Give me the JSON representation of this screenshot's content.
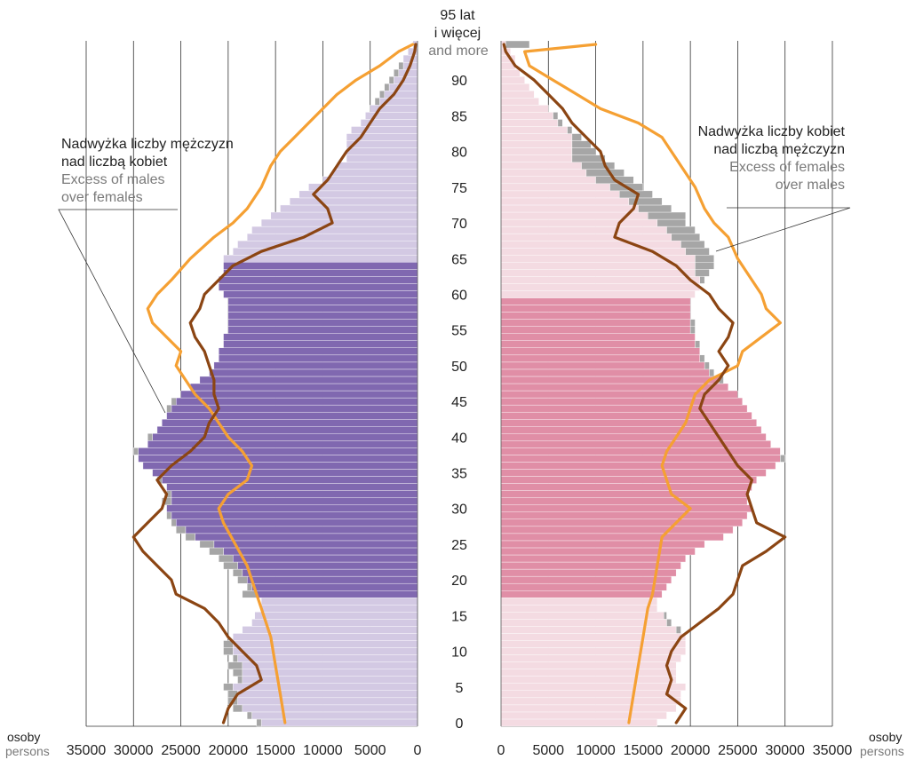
{
  "chart_data": {
    "type": "bar",
    "subtype": "population-pyramid",
    "colors": {
      "male_working_age": "#8068b0",
      "male_other": "#d3c9e3",
      "female_working_age": "#e08ea6",
      "female_other": "#f4dbe2",
      "excess_overlay": "#a6a6a6",
      "line_light": "#f5a033",
      "line_dark": "#8b4513"
    },
    "age_axis": {
      "top_label_pl_1": "95 lat",
      "top_label_pl_2": "i więcej",
      "top_label_en": "and more",
      "ticks": [
        "0",
        "5",
        "10",
        "15",
        "20",
        "25",
        "30",
        "35",
        "40",
        "45",
        "50",
        "55",
        "60",
        "65",
        "70",
        "75",
        "80",
        "85",
        "90"
      ]
    },
    "x_axis": {
      "unit_pl": "osoby",
      "unit_en": "persons",
      "max": 35000,
      "left_ticks": [
        "35000",
        "30000",
        "25000",
        "20000",
        "15000",
        "10000",
        "5000",
        "0"
      ],
      "right_ticks": [
        "0",
        "5000",
        "10000",
        "15000",
        "20000",
        "25000",
        "30000",
        "35000"
      ]
    },
    "annotations": {
      "males": {
        "pl_1": "Nadwyżka liczby mężczyzn",
        "pl_2": "nad liczbą kobiet",
        "en_1": "Excess of males",
        "en_2": "over females"
      },
      "females": {
        "pl_1": "Nadwyżka liczby kobiet",
        "pl_2": "nad liczbą mężczyzn",
        "en_1": "Excess of females",
        "en_2": "over males"
      }
    },
    "working_age": {
      "male": [
        18,
        64
      ],
      "female": [
        18,
        59
      ]
    },
    "ages": [
      0,
      1,
      2,
      3,
      4,
      5,
      6,
      7,
      8,
      9,
      10,
      11,
      12,
      13,
      14,
      15,
      16,
      17,
      18,
      19,
      20,
      21,
      22,
      23,
      24,
      25,
      26,
      27,
      28,
      29,
      30,
      31,
      32,
      33,
      34,
      35,
      36,
      37,
      38,
      39,
      40,
      41,
      42,
      43,
      44,
      45,
      46,
      47,
      48,
      49,
      50,
      51,
      52,
      53,
      54,
      55,
      56,
      57,
      58,
      59,
      60,
      61,
      62,
      63,
      64,
      65,
      66,
      67,
      68,
      69,
      70,
      71,
      72,
      73,
      74,
      75,
      76,
      77,
      78,
      79,
      80,
      81,
      82,
      83,
      84,
      85,
      86,
      87,
      88,
      89,
      90,
      91,
      92,
      93,
      94,
      95
    ],
    "males": [
      17000,
      18000,
      19500,
      20000,
      20000,
      20500,
      19000,
      19500,
      20000,
      19500,
      20500,
      20500,
      19500,
      18500,
      17500,
      17200,
      16500,
      16500,
      18500,
      18000,
      19000,
      19500,
      20500,
      21000,
      22000,
      23000,
      24500,
      25500,
      26000,
      26500,
      26500,
      27000,
      26500,
      26500,
      27500,
      28000,
      29000,
      29500,
      30000,
      28500,
      28500,
      27500,
      27000,
      26500,
      26500,
      26000,
      25000,
      24000,
      23000,
      22000,
      21500,
      21000,
      21000,
      20500,
      20500,
      20000,
      20000,
      20000,
      20000,
      20000,
      20500,
      21000,
      21000,
      20500,
      20500,
      20500,
      19500,
      19000,
      18000,
      17500,
      16500,
      15500,
      14500,
      13500,
      12500,
      11500,
      10000,
      9000,
      8500,
      7500,
      7500,
      7500,
      7500,
      7000,
      6000,
      5500,
      5000,
      4500,
      4000,
      3500,
      3000,
      2500,
      2000,
      1500,
      1000,
      500
    ],
    "females": [
      16500,
      17500,
      18500,
      19000,
      19000,
      19500,
      18500,
      18500,
      18500,
      19000,
      19500,
      19500,
      19500,
      19000,
      18000,
      17500,
      16500,
      16500,
      17000,
      17500,
      18000,
      18500,
      19000,
      19500,
      20500,
      21500,
      23500,
      24500,
      25500,
      26000,
      26500,
      26000,
      26000,
      26500,
      27000,
      28000,
      29000,
      30000,
      29500,
      28500,
      28000,
      27500,
      27000,
      26500,
      26000,
      25500,
      25000,
      24000,
      23500,
      22500,
      22000,
      21500,
      21000,
      21000,
      20500,
      20500,
      20500,
      20000,
      20000,
      20000,
      20500,
      21000,
      21500,
      22000,
      22500,
      22500,
      22000,
      21500,
      21000,
      20500,
      19500,
      19500,
      18000,
      17000,
      16000,
      15000,
      14000,
      13000,
      12000,
      11000,
      10000,
      9500,
      8500,
      7500,
      6500,
      6000,
      5000,
      4000,
      3500,
      3000,
      2500,
      2000,
      1500,
      1500,
      1000,
      3000
    ],
    "series_lines": {
      "males_light": [
        [
          0,
          14000
        ],
        [
          4,
          14500
        ],
        [
          8,
          15000
        ],
        [
          12,
          15500
        ],
        [
          16,
          16500
        ],
        [
          18,
          17000
        ],
        [
          22,
          18000
        ],
        [
          28,
          20500
        ],
        [
          30,
          21000
        ],
        [
          32,
          20000
        ],
        [
          34,
          18000
        ],
        [
          36,
          17500
        ],
        [
          38,
          18500
        ],
        [
          40,
          20000
        ],
        [
          42,
          21000
        ],
        [
          44,
          22000
        ],
        [
          46,
          23500
        ],
        [
          48,
          24500
        ],
        [
          50,
          25500
        ],
        [
          52,
          25000
        ],
        [
          54,
          26500
        ],
        [
          56,
          28000
        ],
        [
          58,
          28500
        ],
        [
          60,
          27500
        ],
        [
          62,
          26000
        ],
        [
          65,
          24000
        ],
        [
          68,
          21500
        ],
        [
          70,
          19500
        ],
        [
          72,
          18000
        ],
        [
          75,
          16500
        ],
        [
          78,
          15500
        ],
        [
          80,
          14500
        ],
        [
          82,
          13000
        ],
        [
          84,
          11500
        ],
        [
          86,
          10000
        ],
        [
          88,
          8500
        ],
        [
          90,
          6500
        ],
        [
          92,
          4000
        ],
        [
          94,
          2000
        ],
        [
          95,
          500
        ]
      ],
      "males_dark": [
        [
          0,
          20500
        ],
        [
          2,
          20000
        ],
        [
          4,
          19000
        ],
        [
          6,
          16500
        ],
        [
          8,
          17000
        ],
        [
          10,
          18500
        ],
        [
          12,
          20000
        ],
        [
          14,
          21000
        ],
        [
          16,
          22500
        ],
        [
          18,
          25500
        ],
        [
          20,
          26000
        ],
        [
          22,
          27500
        ],
        [
          24,
          29000
        ],
        [
          26,
          30000
        ],
        [
          28,
          28500
        ],
        [
          30,
          27000
        ],
        [
          32,
          26500
        ],
        [
          34,
          27500
        ],
        [
          36,
          26000
        ],
        [
          38,
          24000
        ],
        [
          40,
          22500
        ],
        [
          42,
          22000
        ],
        [
          44,
          21000
        ],
        [
          46,
          21500
        ],
        [
          48,
          21500
        ],
        [
          50,
          22000
        ],
        [
          52,
          22500
        ],
        [
          54,
          23500
        ],
        [
          56,
          24000
        ],
        [
          58,
          23000
        ],
        [
          60,
          22500
        ],
        [
          62,
          21000
        ],
        [
          64,
          19500
        ],
        [
          66,
          16500
        ],
        [
          68,
          12000
        ],
        [
          70,
          9000
        ],
        [
          72,
          9500
        ],
        [
          74,
          11000
        ],
        [
          76,
          9500
        ],
        [
          78,
          8500
        ],
        [
          80,
          7500
        ],
        [
          82,
          6000
        ],
        [
          84,
          5000
        ],
        [
          86,
          4000
        ],
        [
          88,
          2500
        ],
        [
          90,
          1500
        ],
        [
          92,
          800
        ],
        [
          94,
          300
        ],
        [
          95,
          200
        ]
      ],
      "females_light": [
        [
          0,
          13500
        ],
        [
          4,
          14000
        ],
        [
          8,
          14500
        ],
        [
          12,
          15000
        ],
        [
          16,
          15500
        ],
        [
          18,
          16000
        ],
        [
          22,
          16500
        ],
        [
          26,
          17000
        ],
        [
          28,
          18500
        ],
        [
          30,
          20000
        ],
        [
          32,
          18000
        ],
        [
          34,
          17500
        ],
        [
          36,
          17000
        ],
        [
          38,
          17500
        ],
        [
          40,
          18500
        ],
        [
          42,
          19500
        ],
        [
          44,
          20000
        ],
        [
          46,
          20500
        ],
        [
          48,
          22000
        ],
        [
          50,
          25000
        ],
        [
          52,
          25500
        ],
        [
          54,
          27500
        ],
        [
          56,
          29500
        ],
        [
          58,
          28000
        ],
        [
          60,
          27500
        ],
        [
          62,
          26500
        ],
        [
          65,
          25000
        ],
        [
          68,
          24000
        ],
        [
          70,
          22500
        ],
        [
          72,
          21500
        ],
        [
          75,
          20500
        ],
        [
          78,
          19000
        ],
        [
          80,
          18000
        ],
        [
          82,
          17000
        ],
        [
          84,
          14500
        ],
        [
          86,
          10500
        ],
        [
          88,
          8000
        ],
        [
          90,
          5500
        ],
        [
          92,
          3000
        ],
        [
          94,
          2500
        ],
        [
          95,
          10000
        ]
      ],
      "females_dark": [
        [
          0,
          18500
        ],
        [
          2,
          19500
        ],
        [
          4,
          17500
        ],
        [
          6,
          18000
        ],
        [
          8,
          17500
        ],
        [
          10,
          18000
        ],
        [
          12,
          19000
        ],
        [
          14,
          21000
        ],
        [
          16,
          23000
        ],
        [
          18,
          24500
        ],
        [
          20,
          25000
        ],
        [
          22,
          25500
        ],
        [
          24,
          28000
        ],
        [
          26,
          30000
        ],
        [
          28,
          27000
        ],
        [
          30,
          26500
        ],
        [
          32,
          26000
        ],
        [
          34,
          26500
        ],
        [
          36,
          25000
        ],
        [
          38,
          24000
        ],
        [
          40,
          23000
        ],
        [
          42,
          22000
        ],
        [
          44,
          21000
        ],
        [
          46,
          21500
        ],
        [
          48,
          23000
        ],
        [
          50,
          24000
        ],
        [
          52,
          23000
        ],
        [
          54,
          24000
        ],
        [
          56,
          24500
        ],
        [
          58,
          23000
        ],
        [
          60,
          22000
        ],
        [
          62,
          20000
        ],
        [
          64,
          18500
        ],
        [
          66,
          16000
        ],
        [
          68,
          12000
        ],
        [
          70,
          12500
        ],
        [
          72,
          14000
        ],
        [
          74,
          14500
        ],
        [
          76,
          12000
        ],
        [
          78,
          11000
        ],
        [
          80,
          10500
        ],
        [
          82,
          9000
        ],
        [
          84,
          7500
        ],
        [
          86,
          6500
        ],
        [
          88,
          5000
        ],
        [
          90,
          3500
        ],
        [
          92,
          1500
        ],
        [
          94,
          500
        ],
        [
          95,
          300
        ]
      ]
    }
  }
}
